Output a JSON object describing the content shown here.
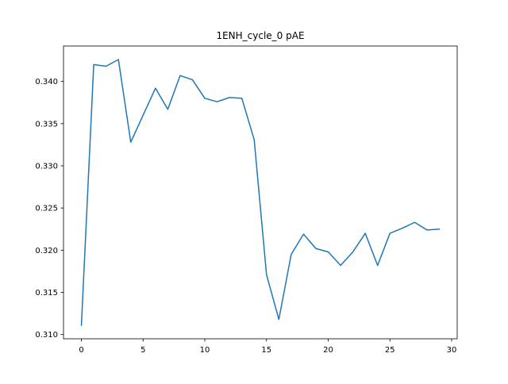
{
  "chart_data": {
    "type": "line",
    "title": "1ENH_cycle_0 pAE",
    "xlabel": "",
    "ylabel": "",
    "xlim": [
      -1.45,
      30.45
    ],
    "ylim": [
      0.3095,
      0.3442
    ],
    "xticks": [
      0,
      5,
      10,
      15,
      20,
      25,
      30
    ],
    "xtick_labels": [
      "0",
      "5",
      "10",
      "15",
      "20",
      "25",
      "30"
    ],
    "yticks": [
      0.31,
      0.315,
      0.32,
      0.325,
      0.33,
      0.335,
      0.34
    ],
    "ytick_labels": [
      "0.310",
      "0.315",
      "0.320",
      "0.325",
      "0.330",
      "0.335",
      "0.340"
    ],
    "grid": false,
    "series": [
      {
        "color": "#1f77b4",
        "x": [
          0,
          1,
          2,
          3,
          4,
          5,
          6,
          7,
          8,
          9,
          10,
          11,
          12,
          13,
          14,
          15,
          16,
          17,
          18,
          19,
          20,
          21,
          22,
          23,
          24,
          25,
          26,
          27,
          28,
          29
        ],
        "y": [
          0.3111,
          0.342,
          0.3418,
          0.3426,
          0.3328,
          0.336,
          0.3392,
          0.3367,
          0.3407,
          0.3402,
          0.338,
          0.3376,
          0.3381,
          0.338,
          0.3331,
          0.3171,
          0.3118,
          0.3195,
          0.3219,
          0.3202,
          0.3198,
          0.3182,
          0.3198,
          0.322,
          0.3182,
          0.322,
          0.3226,
          0.3233,
          0.3224,
          0.3225
        ]
      }
    ]
  }
}
